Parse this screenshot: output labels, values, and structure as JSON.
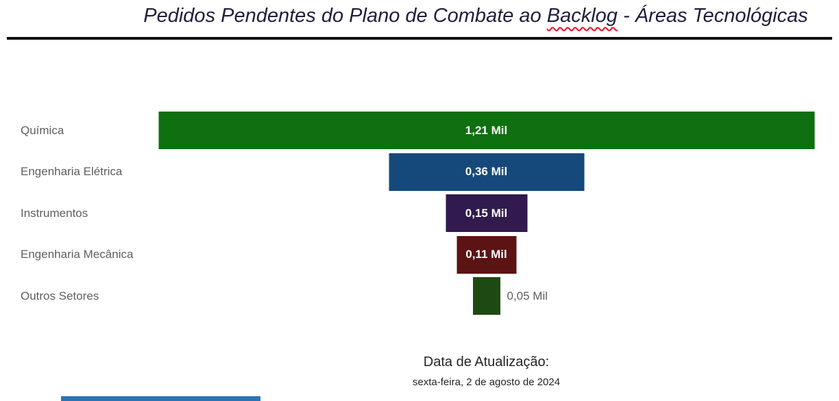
{
  "title": {
    "text_before": "Pedidos Pendentes do Plano de Combate ao ",
    "highlight": "Backlog",
    "text_after": " - Áreas Tecnológicas",
    "color": "#1f1f3d",
    "squiggle_color": "#e81123"
  },
  "chart_data": {
    "type": "funnel",
    "title": "Pedidos Pendentes do Plano de Combate ao Backlog - Áreas Tecnológicas",
    "categories": [
      "Química",
      "Engenharia Elétrica",
      "Instrumentos",
      "Engenharia Mecânica",
      "Outros Setores"
    ],
    "values": [
      1.21,
      0.36,
      0.15,
      0.11,
      0.05
    ],
    "unit": "Mil",
    "value_labels": [
      "1,21 Mil",
      "0,36 Mil",
      "0,15 Mil",
      "0,11 Mil",
      "0,05 Mil"
    ],
    "bar_colors": [
      "#0e700e",
      "#15497c",
      "#311a4e",
      "#5b1313",
      "#1d4a12"
    ],
    "max_value": 1.21,
    "category_label_color": "#605e5c",
    "value_label_inside_color": "#ffffff",
    "value_label_outside_color": "#605e5c",
    "legend": "off",
    "grid": "off"
  },
  "footer": {
    "label": "Data de Atualização:",
    "date": "sexta-feira, 2 de agosto de 2024"
  },
  "decor": {
    "bottom_strip_color": "#2e74b5",
    "title_rule_color": "#0a0a0a"
  }
}
